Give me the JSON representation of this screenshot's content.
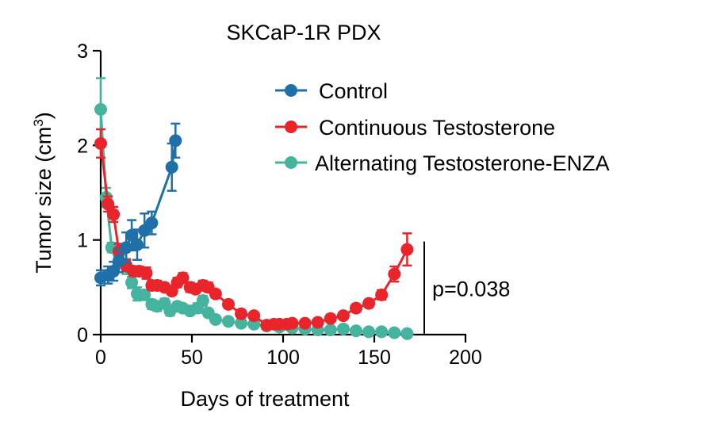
{
  "chart_data": {
    "type": "line",
    "title": "SKCaP-1R PDX",
    "xlabel": "Days of treatment",
    "ylabel": "Tumor size (cm",
    "ylabel_sup": "3",
    "ylabel_close": ")",
    "xlim": [
      0,
      200
    ],
    "ylim": [
      0,
      3
    ],
    "xticks": [
      0,
      50,
      100,
      150,
      200
    ],
    "yticks": [
      0,
      1,
      2,
      3
    ],
    "xtick_labels": [
      "0",
      "50",
      "100",
      "150",
      "200"
    ],
    "ytick_labels": [
      "0",
      "1",
      "2",
      "3"
    ],
    "legend_position": "top-right",
    "series": [
      {
        "name": "Alternating Testosterone-ENZA",
        "color": "#45b39d",
        "x": [
          0,
          3,
          6,
          10,
          14,
          17,
          20,
          24,
          28,
          31,
          35,
          38,
          42,
          45,
          49,
          53,
          56,
          59,
          63,
          70,
          77,
          84,
          91,
          98,
          105,
          112,
          119,
          126,
          133,
          140,
          147,
          154,
          161,
          168
        ],
        "y": [
          2.38,
          1.45,
          0.92,
          0.85,
          0.72,
          0.55,
          0.43,
          0.42,
          0.32,
          0.3,
          0.33,
          0.25,
          0.3,
          0.28,
          0.25,
          0.28,
          0.36,
          0.23,
          0.16,
          0.14,
          0.12,
          0.11,
          0.09,
          0.08,
          0.07,
          0.06,
          0.05,
          0.05,
          0.06,
          0.04,
          0.03,
          0.03,
          0.02,
          0.01
        ],
        "err": [
          0.33,
          0.1,
          0.05,
          0.1,
          0.08,
          0.06,
          0.07,
          0.05,
          0.05,
          0.05,
          0.05,
          0.05,
          0.04,
          0.04,
          0.04,
          0.05,
          0.05,
          0.04,
          0.03,
          0.03,
          0.02,
          0.02,
          0.02,
          0.02,
          0.02,
          0.02,
          0.01,
          0.01,
          0.01,
          0.01,
          0.01,
          0.01,
          0.01,
          0.01
        ]
      },
      {
        "name": "Continuous Testosterone",
        "color": "#e8252a",
        "x": [
          0,
          4,
          7,
          10,
          14,
          18,
          21,
          25,
          28,
          31,
          35,
          39,
          42,
          45,
          49,
          52,
          56,
          59,
          63,
          70,
          77,
          84,
          91,
          95,
          98,
          102,
          105,
          112,
          119,
          126,
          133,
          140,
          147,
          154,
          161,
          168
        ],
        "y": [
          2.02,
          1.38,
          1.27,
          0.88,
          0.73,
          0.67,
          0.67,
          0.65,
          0.52,
          0.52,
          0.5,
          0.46,
          0.55,
          0.6,
          0.5,
          0.48,
          0.52,
          0.5,
          0.43,
          0.32,
          0.22,
          0.2,
          0.1,
          0.11,
          0.11,
          0.11,
          0.12,
          0.12,
          0.13,
          0.17,
          0.2,
          0.28,
          0.33,
          0.42,
          0.64,
          0.9
        ],
        "err": [
          0.15,
          0.08,
          0.08,
          0.08,
          0.06,
          0.05,
          0.05,
          0.06,
          0.05,
          0.05,
          0.04,
          0.04,
          0.05,
          0.05,
          0.05,
          0.04,
          0.05,
          0.05,
          0.04,
          0.04,
          0.04,
          0.03,
          0.03,
          0.03,
          0.03,
          0.03,
          0.03,
          0.03,
          0.03,
          0.03,
          0.03,
          0.04,
          0.04,
          0.05,
          0.08,
          0.17
        ]
      },
      {
        "name": "Control",
        "color": "#1f6fa8",
        "x": [
          0,
          4,
          7,
          10,
          14,
          17,
          20,
          24,
          28,
          39,
          41
        ],
        "y": [
          0.6,
          0.63,
          0.67,
          0.78,
          0.92,
          1.05,
          0.95,
          1.1,
          1.18,
          1.77,
          2.05
        ],
        "err": [
          0.08,
          0.09,
          0.1,
          0.12,
          0.16,
          0.16,
          0.16,
          0.18,
          0.12,
          0.25,
          0.18
        ]
      }
    ],
    "annotation": {
      "text": "p=0.038",
      "bracket_from": 0.01,
      "bracket_to": 0.95
    }
  }
}
